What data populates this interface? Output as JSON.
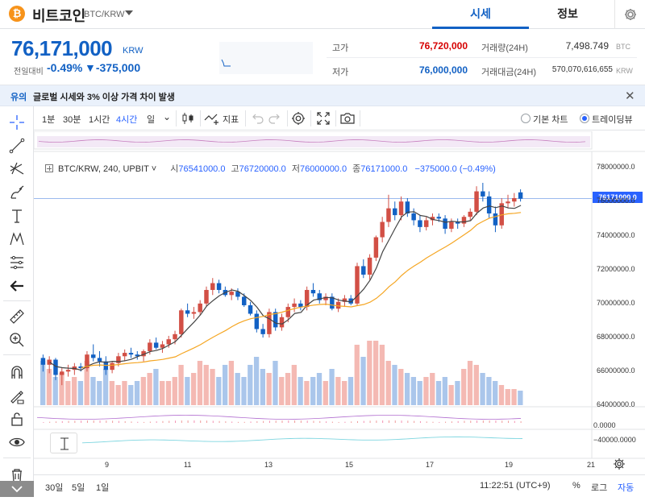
{
  "header": {
    "coin_symbol": "₿",
    "coin_name": "비트코인",
    "pair": "BTC/KRW",
    "tabs": [
      {
        "label": "시세",
        "active": true
      },
      {
        "label": "정보",
        "active": false
      }
    ]
  },
  "summary": {
    "price": "76,171,000",
    "unit": "KRW",
    "prev_day_label": "전일대비",
    "change_pct": "-0.49%",
    "change_amount": "▼-375,000",
    "high_label": "고가",
    "high_value": "76,720,000",
    "low_label": "저가",
    "low_value": "76,000,000",
    "volume_label": "거래량(24H)",
    "volume_value": "7,498.749",
    "volume_unit": "BTC",
    "turnover_label": "거래대금(24H)",
    "turnover_value": "570,070,616,655",
    "turnover_unit": "KRW"
  },
  "notice": {
    "tag": "유의",
    "text": "글로벌 시세와 3% 이상 가격 차이 발생"
  },
  "toolbar": {
    "intervals": [
      {
        "label": "1분",
        "active": false
      },
      {
        "label": "30분",
        "active": false
      },
      {
        "label": "1시간",
        "active": false
      },
      {
        "label": "4시간",
        "active": true
      },
      {
        "label": "일",
        "active": false
      }
    ],
    "indicators_label": "지표",
    "basic_chart_label": "기본 차트",
    "trading_view_label": "트레이딩뷰",
    "selected_view": "트레이딩뷰"
  },
  "chart_legend": {
    "symbol": "BTC/KRW, 240, UPBIT",
    "open_key": "시",
    "open_val": "76541000.0",
    "high_key": "고",
    "high_val": "76720000.0",
    "low_key": "저",
    "low_val": "76000000.0",
    "close_key": "종",
    "close_val": "76171000.0",
    "change": "−375000.0 (−0.49%)"
  },
  "chart_data": {
    "type": "candlestick",
    "interval": "4h",
    "current_price": "76171000.0",
    "y_ticks": [
      "78000000.0",
      "76000000.0",
      "74000000.0",
      "72000000.0",
      "70000000.0",
      "68000000.0",
      "66000000.0",
      "64000000.0"
    ],
    "ylim": [
      63800000,
      79000000
    ],
    "x_ticks": [
      "9",
      "11",
      "13",
      "15",
      "17",
      "19",
      "21"
    ],
    "osc_ticks": [
      "0.0000",
      "−40000.0000"
    ],
    "up_color": "#d24f45",
    "down_color": "#1261c4",
    "ma_colors": [
      "#444444",
      "#f5a623"
    ],
    "candles": [
      [
        66.8,
        67.0,
        66.0,
        66.4
      ],
      [
        66.4,
        66.9,
        65.9,
        66.7
      ],
      [
        66.7,
        66.8,
        65.5,
        65.8
      ],
      [
        65.8,
        66.2,
        65.2,
        66.0
      ],
      [
        66.0,
        66.4,
        65.7,
        66.1
      ],
      [
        66.1,
        66.5,
        65.8,
        66.3
      ],
      [
        66.3,
        66.5,
        66.0,
        66.2
      ],
      [
        66.2,
        67.2,
        66.0,
        67.0
      ],
      [
        67.0,
        67.6,
        66.6,
        66.8
      ],
      [
        66.8,
        67.2,
        66.3,
        66.6
      ],
      [
        66.6,
        66.9,
        65.8,
        66.1
      ],
      [
        66.1,
        66.6,
        65.9,
        66.5
      ],
      [
        66.5,
        67.1,
        66.3,
        66.9
      ],
      [
        66.9,
        67.3,
        66.6,
        67.1
      ],
      [
        67.1,
        67.4,
        66.8,
        67.0
      ],
      [
        67.0,
        67.2,
        66.7,
        66.9
      ],
      [
        66.9,
        67.3,
        66.6,
        67.2
      ],
      [
        67.2,
        67.9,
        67.0,
        67.7
      ],
      [
        67.7,
        68.0,
        67.3,
        67.4
      ],
      [
        67.4,
        67.8,
        67.1,
        67.6
      ],
      [
        67.6,
        68.1,
        67.4,
        67.9
      ],
      [
        67.9,
        68.4,
        67.6,
        68.2
      ],
      [
        68.2,
        69.7,
        68.0,
        69.6
      ],
      [
        69.6,
        70.0,
        69.2,
        69.4
      ],
      [
        69.4,
        69.8,
        69.1,
        69.5
      ],
      [
        69.5,
        70.2,
        69.3,
        70.0
      ],
      [
        70.0,
        71.0,
        69.8,
        70.8
      ],
      [
        70.8,
        71.5,
        70.5,
        71.2
      ],
      [
        71.2,
        71.4,
        70.6,
        70.8
      ],
      [
        70.8,
        71.0,
        70.4,
        70.5
      ],
      [
        70.5,
        70.9,
        70.2,
        70.7
      ],
      [
        70.7,
        70.9,
        70.2,
        70.4
      ],
      [
        70.4,
        70.6,
        69.8,
        69.9
      ],
      [
        69.9,
        70.1,
        69.3,
        69.4
      ],
      [
        69.4,
        69.6,
        68.3,
        68.5
      ],
      [
        68.5,
        68.8,
        68.0,
        68.2
      ],
      [
        68.2,
        69.7,
        68.0,
        69.5
      ],
      [
        69.5,
        69.7,
        68.4,
        68.6
      ],
      [
        68.6,
        69.4,
        68.4,
        69.2
      ],
      [
        69.2,
        70.0,
        68.9,
        69.8
      ],
      [
        69.8,
        70.3,
        69.5,
        70.0
      ],
      [
        70.0,
        70.2,
        69.6,
        69.8
      ],
      [
        69.8,
        71.0,
        69.6,
        70.8
      ],
      [
        70.8,
        71.2,
        70.4,
        70.6
      ],
      [
        70.6,
        70.8,
        70.0,
        70.2
      ],
      [
        70.2,
        70.6,
        69.9,
        70.4
      ],
      [
        70.4,
        70.6,
        69.6,
        69.7
      ],
      [
        69.7,
        70.3,
        69.5,
        70.1
      ],
      [
        70.1,
        70.5,
        69.8,
        70.3
      ],
      [
        70.3,
        70.5,
        69.9,
        70.0
      ],
      [
        70.0,
        72.4,
        69.9,
        72.2
      ],
      [
        72.2,
        72.6,
        71.5,
        71.7
      ],
      [
        71.7,
        72.9,
        71.4,
        72.7
      ],
      [
        72.7,
        74.0,
        72.5,
        73.9
      ],
      [
        73.9,
        75.1,
        73.6,
        74.8
      ],
      [
        74.8,
        76.4,
        74.5,
        75.6
      ],
      [
        75.6,
        76.0,
        74.9,
        75.2
      ],
      [
        75.2,
        76.3,
        74.9,
        76.0
      ],
      [
        76.0,
        76.2,
        75.1,
        75.3
      ],
      [
        75.3,
        75.6,
        74.6,
        74.9
      ],
      [
        74.9,
        75.2,
        74.2,
        74.5
      ],
      [
        74.5,
        75.1,
        74.3,
        74.9
      ],
      [
        74.9,
        75.3,
        74.6,
        75.1
      ],
      [
        75.1,
        75.3,
        74.8,
        75.0
      ],
      [
        75.0,
        75.2,
        74.1,
        74.4
      ],
      [
        74.4,
        75.0,
        74.2,
        74.8
      ],
      [
        74.8,
        75.0,
        74.4,
        74.7
      ],
      [
        74.7,
        75.2,
        74.5,
        75.1
      ],
      [
        75.1,
        75.6,
        74.9,
        75.4
      ],
      [
        75.4,
        76.9,
        75.2,
        76.6
      ],
      [
        76.6,
        77.1,
        76.0,
        76.3
      ],
      [
        76.3,
        76.6,
        75.0,
        75.3
      ],
      [
        75.3,
        75.7,
        74.2,
        74.6
      ],
      [
        74.6,
        76.2,
        74.4,
        75.9
      ],
      [
        75.9,
        76.4,
        75.6,
        76.0
      ],
      [
        76.0,
        76.5,
        75.7,
        76.2
      ],
      [
        76.54,
        76.72,
        76.0,
        76.17
      ]
    ],
    "volumes": [
      0.55,
      0.45,
      0.35,
      0.4,
      0.3,
      0.35,
      0.3,
      0.55,
      0.35,
      0.3,
      0.45,
      0.3,
      0.25,
      0.3,
      0.25,
      0.3,
      0.35,
      0.4,
      0.45,
      0.3,
      0.3,
      0.35,
      0.5,
      0.35,
      0.4,
      0.55,
      0.5,
      0.45,
      0.35,
      0.5,
      0.55,
      0.4,
      0.35,
      0.5,
      0.6,
      0.45,
      0.4,
      0.55,
      0.35,
      0.4,
      0.5,
      0.35,
      0.3,
      0.35,
      0.4,
      0.3,
      0.45,
      0.35,
      0.3,
      0.35,
      0.75,
      0.6,
      0.8,
      0.8,
      0.75,
      0.55,
      0.5,
      0.45,
      0.4,
      0.35,
      0.3,
      0.35,
      0.4,
      0.3,
      0.35,
      0.25,
      0.3,
      0.45,
      0.55,
      0.5,
      0.4,
      0.35,
      0.3,
      0.25,
      0.2,
      0.2,
      0.18
    ]
  }
}
